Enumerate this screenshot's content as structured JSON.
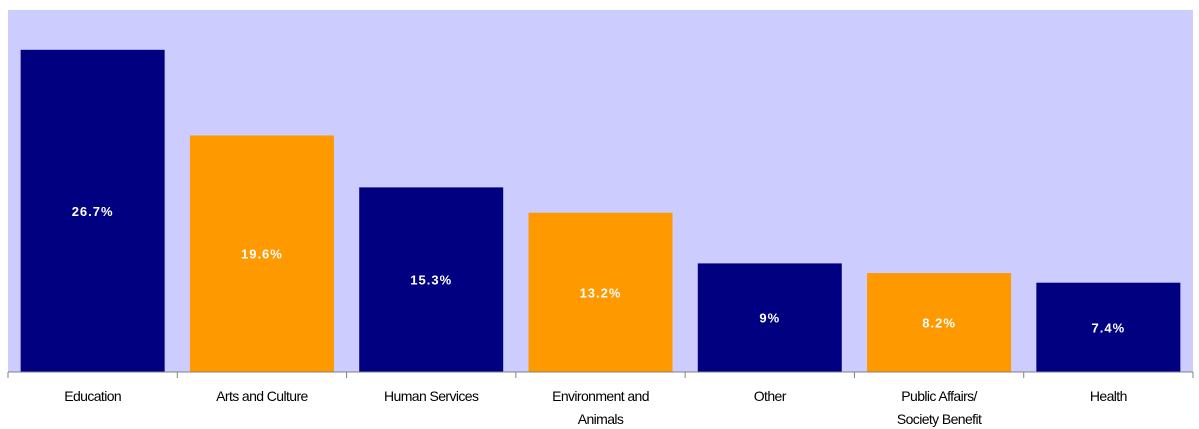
{
  "chart_data": {
    "type": "bar",
    "title": "",
    "xlabel": "",
    "ylabel": "",
    "ylim": [
      0,
      30
    ],
    "grid": false,
    "legend": "none",
    "categories": [
      [
        "Education"
      ],
      [
        "Arts and Culture"
      ],
      [
        "Human Services"
      ],
      [
        "Environment and",
        "Animals"
      ],
      [
        "Other"
      ],
      [
        "Public Affairs/",
        "Society Benefit"
      ],
      [
        "Health"
      ]
    ],
    "values": [
      26.7,
      19.6,
      15.3,
      13.2,
      9,
      8.2,
      7.4
    ],
    "value_labels": [
      "26.7%",
      "19.6%",
      "15.3%",
      "13.2%",
      "9%",
      "8.2%",
      "7.4%"
    ],
    "colors": [
      "#000080",
      "#ff9900",
      "#000080",
      "#ff9900",
      "#000080",
      "#ff9900",
      "#000080"
    ],
    "plot_background": "#ccccff",
    "axis_color": "#808080"
  }
}
